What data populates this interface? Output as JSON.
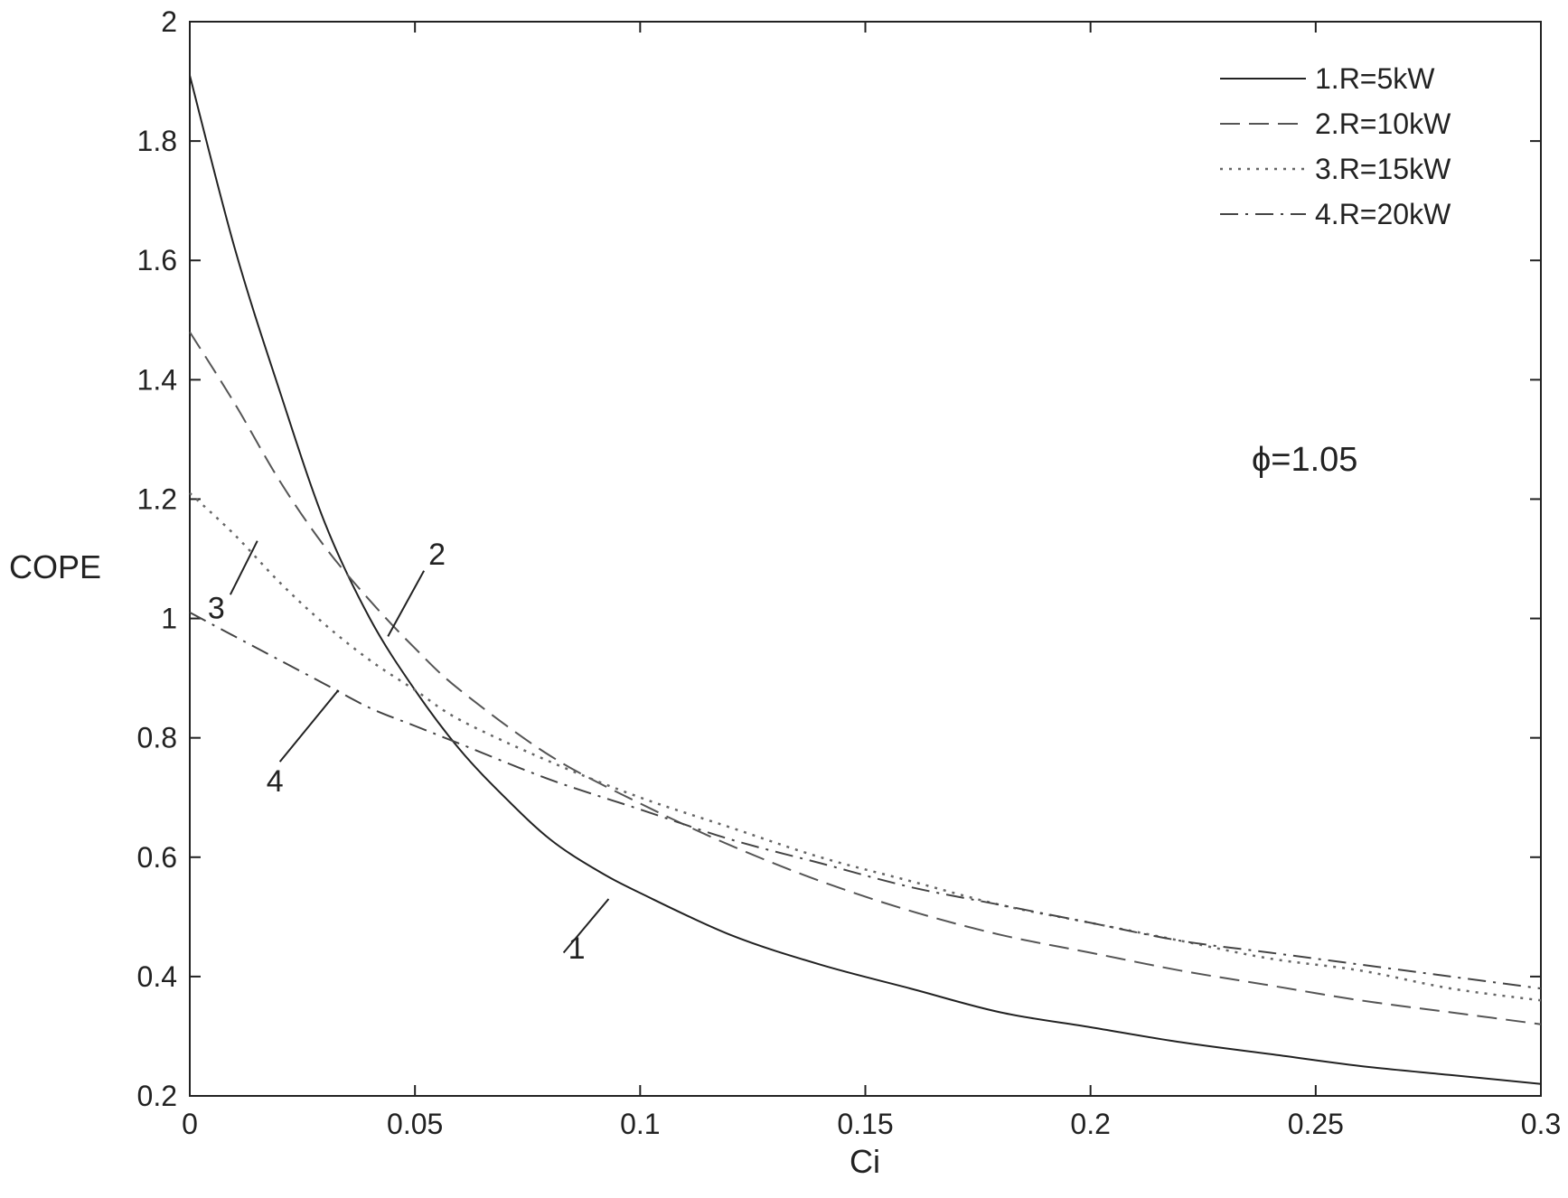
{
  "chart_data": {
    "type": "line",
    "xlabel": "Ci",
    "ylabel": "COPE",
    "xlim": [
      0,
      0.3
    ],
    "ylim": [
      0.2,
      2
    ],
    "xticks": [
      0,
      0.05,
      0.1,
      0.15,
      0.2,
      0.25,
      0.3
    ],
    "yticks": [
      0.2,
      0.4,
      0.6,
      0.8,
      1,
      1.2,
      1.4,
      1.6,
      1.8,
      2
    ],
    "xtick_labels": [
      "0",
      "0.05",
      "0.1",
      "0.15",
      "0.2",
      "0.25",
      "0.3"
    ],
    "ytick_labels": [
      "0.2",
      "0.4",
      "0.6",
      "0.8",
      "1",
      "1.2",
      "1.4",
      "1.6",
      "1.8",
      "2"
    ],
    "grid": false,
    "legend_position": "top-right",
    "annotation": "ϕ=1.05",
    "series": [
      {
        "name": "1.R=5kW",
        "label": "1",
        "style": "solid",
        "x": [
          0,
          0.01,
          0.02,
          0.03,
          0.04,
          0.05,
          0.06,
          0.07,
          0.08,
          0.09,
          0.1,
          0.12,
          0.14,
          0.16,
          0.18,
          0.2,
          0.22,
          0.24,
          0.26,
          0.28,
          0.3
        ],
        "y": [
          1.91,
          1.62,
          1.38,
          1.16,
          1.0,
          0.88,
          0.78,
          0.7,
          0.63,
          0.58,
          0.54,
          0.47,
          0.42,
          0.38,
          0.34,
          0.315,
          0.29,
          0.27,
          0.25,
          0.235,
          0.22
        ]
      },
      {
        "name": "2.R=10kW",
        "label": "2",
        "style": "dashed",
        "x": [
          0,
          0.01,
          0.02,
          0.03,
          0.04,
          0.05,
          0.06,
          0.08,
          0.1,
          0.12,
          0.14,
          0.16,
          0.18,
          0.2,
          0.22,
          0.24,
          0.26,
          0.28,
          0.3
        ],
        "y": [
          1.48,
          1.36,
          1.23,
          1.12,
          1.03,
          0.95,
          0.88,
          0.77,
          0.69,
          0.62,
          0.56,
          0.51,
          0.47,
          0.44,
          0.41,
          0.385,
          0.36,
          0.34,
          0.32
        ]
      },
      {
        "name": "3.R=15kW",
        "label": "3",
        "style": "dotted",
        "x": [
          0,
          0.01,
          0.02,
          0.03,
          0.04,
          0.05,
          0.06,
          0.08,
          0.1,
          0.12,
          0.14,
          0.16,
          0.18,
          0.2,
          0.22,
          0.24,
          0.26,
          0.28,
          0.3
        ],
        "y": [
          1.21,
          1.14,
          1.06,
          0.99,
          0.93,
          0.88,
          0.83,
          0.76,
          0.7,
          0.65,
          0.6,
          0.56,
          0.52,
          0.49,
          0.46,
          0.43,
          0.41,
          0.38,
          0.36
        ]
      },
      {
        "name": "4.R=20kW",
        "label": "4",
        "style": "dashdot",
        "x": [
          0,
          0.01,
          0.02,
          0.03,
          0.04,
          0.05,
          0.06,
          0.08,
          0.1,
          0.12,
          0.14,
          0.16,
          0.18,
          0.2,
          0.22,
          0.24,
          0.26,
          0.28,
          0.3
        ],
        "y": [
          1.01,
          0.97,
          0.93,
          0.89,
          0.85,
          0.82,
          0.79,
          0.73,
          0.68,
          0.63,
          0.59,
          0.55,
          0.52,
          0.49,
          0.46,
          0.44,
          0.42,
          0.4,
          0.38
        ]
      }
    ]
  }
}
